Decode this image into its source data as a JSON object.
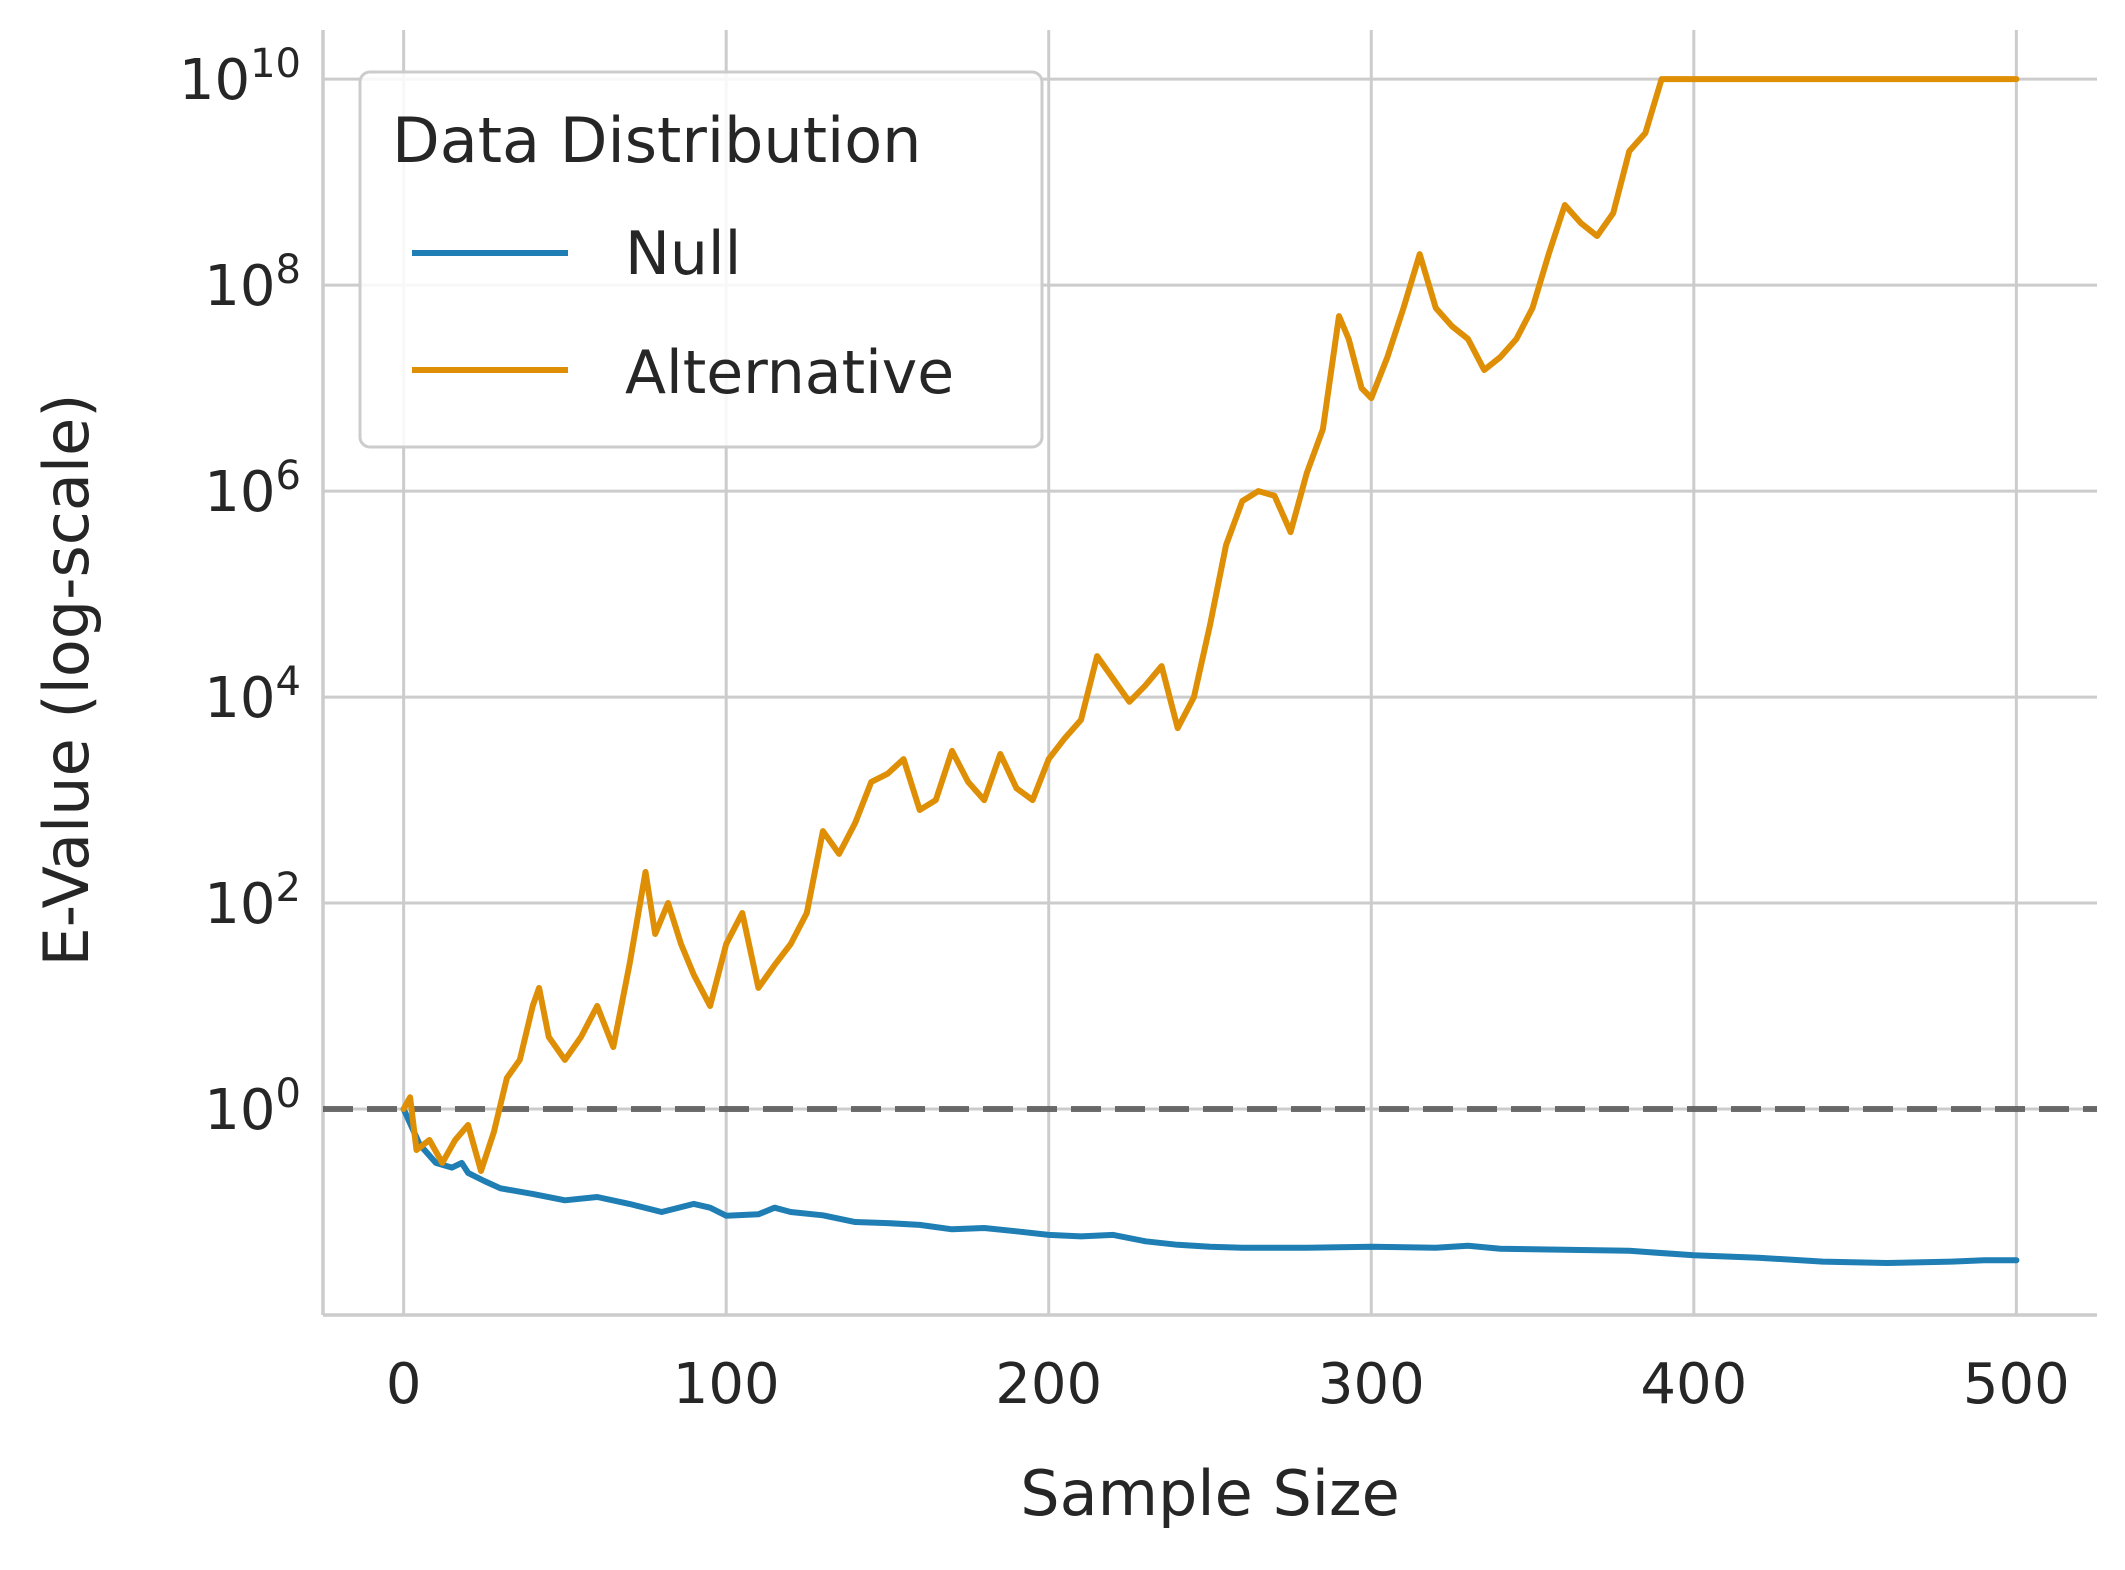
{
  "chart_data": {
    "type": "line",
    "xlabel": "Sample Size",
    "ylabel": "E-Value (log-scale)",
    "y_scale": "log",
    "xlim": [
      -25,
      525
    ],
    "ylim": [
      0.01,
      30000000000.0
    ],
    "xticks": [
      0,
      100,
      200,
      300,
      400,
      500
    ],
    "xtick_labels": [
      "0",
      "100",
      "200",
      "300",
      "400",
      "500"
    ],
    "yticks": [
      {
        "base": "10",
        "exp": "0",
        "value": 1
      },
      {
        "base": "10",
        "exp": "2",
        "value": 100
      },
      {
        "base": "10",
        "exp": "4",
        "value": 10000
      },
      {
        "base": "10",
        "exp": "6",
        "value": 1000000
      },
      {
        "base": "10",
        "exp": "8",
        "value": 100000000
      },
      {
        "base": "10",
        "exp": "10",
        "value": 10000000000
      }
    ],
    "grid": true,
    "reference_line": {
      "y": 1,
      "style": "dashed",
      "color": "#555555"
    },
    "legend": {
      "title": "Data Distribution",
      "placement": "top-left",
      "entries": [
        "Null",
        "Alternative"
      ]
    },
    "series": [
      {
        "name": "Null",
        "color": "#1f7eb4",
        "points": [
          [
            0,
            1.0
          ],
          [
            5,
            0.45
          ],
          [
            10,
            0.3
          ],
          [
            15,
            0.27
          ],
          [
            18,
            0.3
          ],
          [
            20,
            0.24
          ],
          [
            25,
            0.2
          ],
          [
            30,
            0.17
          ],
          [
            40,
            0.15
          ],
          [
            50,
            0.13
          ],
          [
            60,
            0.14
          ],
          [
            70,
            0.12
          ],
          [
            80,
            0.1
          ],
          [
            90,
            0.12
          ],
          [
            95,
            0.11
          ],
          [
            100,
            0.092
          ],
          [
            110,
            0.095
          ],
          [
            115,
            0.11
          ],
          [
            120,
            0.1
          ],
          [
            130,
            0.093
          ],
          [
            140,
            0.08
          ],
          [
            150,
            0.078
          ],
          [
            160,
            0.075
          ],
          [
            170,
            0.068
          ],
          [
            180,
            0.07
          ],
          [
            190,
            0.065
          ],
          [
            200,
            0.06
          ],
          [
            210,
            0.058
          ],
          [
            220,
            0.06
          ],
          [
            230,
            0.052
          ],
          [
            240,
            0.048
          ],
          [
            250,
            0.046
          ],
          [
            260,
            0.045
          ],
          [
            280,
            0.045
          ],
          [
            300,
            0.046
          ],
          [
            320,
            0.045
          ],
          [
            330,
            0.047
          ],
          [
            340,
            0.044
          ],
          [
            360,
            0.043
          ],
          [
            380,
            0.042
          ],
          [
            400,
            0.038
          ],
          [
            420,
            0.036
          ],
          [
            440,
            0.033
          ],
          [
            460,
            0.032
          ],
          [
            480,
            0.033
          ],
          [
            490,
            0.034
          ],
          [
            500,
            0.034
          ]
        ]
      },
      {
        "name": "Alternative",
        "color": "#de8f05",
        "points": [
          [
            0,
            1.0
          ],
          [
            2,
            1.3
          ],
          [
            4,
            0.4
          ],
          [
            8,
            0.5
          ],
          [
            12,
            0.3
          ],
          [
            16,
            0.5
          ],
          [
            20,
            0.7
          ],
          [
            24,
            0.25
          ],
          [
            28,
            0.6
          ],
          [
            32,
            2.0
          ],
          [
            36,
            3.0
          ],
          [
            40,
            10
          ],
          [
            42,
            15
          ],
          [
            45,
            5
          ],
          [
            50,
            3.0
          ],
          [
            55,
            5
          ],
          [
            60,
            10
          ],
          [
            65,
            4
          ],
          [
            70,
            25
          ],
          [
            75,
            200
          ],
          [
            78,
            50
          ],
          [
            82,
            100
          ],
          [
            86,
            40
          ],
          [
            90,
            20
          ],
          [
            95,
            10
          ],
          [
            100,
            40
          ],
          [
            105,
            80
          ],
          [
            110,
            15
          ],
          [
            115,
            25
          ],
          [
            120,
            40
          ],
          [
            125,
            80
          ],
          [
            130,
            500
          ],
          [
            135,
            300
          ],
          [
            140,
            600
          ],
          [
            145,
            1500
          ],
          [
            150,
            1800
          ],
          [
            155,
            2500
          ],
          [
            160,
            800
          ],
          [
            165,
            1000
          ],
          [
            170,
            3000
          ],
          [
            175,
            1500
          ],
          [
            180,
            1000
          ],
          [
            185,
            2800
          ],
          [
            190,
            1300
          ],
          [
            195,
            1000
          ],
          [
            200,
            2500
          ],
          [
            205,
            4000
          ],
          [
            210,
            6000
          ],
          [
            215,
            25000
          ],
          [
            220,
            15000
          ],
          [
            225,
            9000
          ],
          [
            230,
            13000
          ],
          [
            235,
            20000
          ],
          [
            240,
            5000
          ],
          [
            245,
            10000
          ],
          [
            250,
            50000
          ],
          [
            255,
            300000
          ],
          [
            260,
            800000
          ],
          [
            265,
            1000000
          ],
          [
            270,
            900000
          ],
          [
            275,
            400000
          ],
          [
            280,
            1500000
          ],
          [
            285,
            4000000
          ],
          [
            290,
            50000000
          ],
          [
            293,
            30000000
          ],
          [
            297,
            10000000
          ],
          [
            300,
            8000000
          ],
          [
            305,
            20000000
          ],
          [
            310,
            60000000
          ],
          [
            315,
            200000000
          ],
          [
            320,
            60000000
          ],
          [
            325,
            40000000
          ],
          [
            330,
            30000000
          ],
          [
            335,
            15000000
          ],
          [
            340,
            20000000
          ],
          [
            345,
            30000000
          ],
          [
            350,
            60000000
          ],
          [
            355,
            200000000
          ],
          [
            360,
            600000000
          ],
          [
            365,
            400000000
          ],
          [
            370,
            300000000
          ],
          [
            375,
            500000000
          ],
          [
            380,
            2000000000
          ],
          [
            385,
            3000000000
          ],
          [
            390,
            10000000000
          ],
          [
            400,
            10000000000
          ],
          [
            450,
            10000000000
          ],
          [
            500,
            10000000000
          ]
        ]
      }
    ]
  }
}
